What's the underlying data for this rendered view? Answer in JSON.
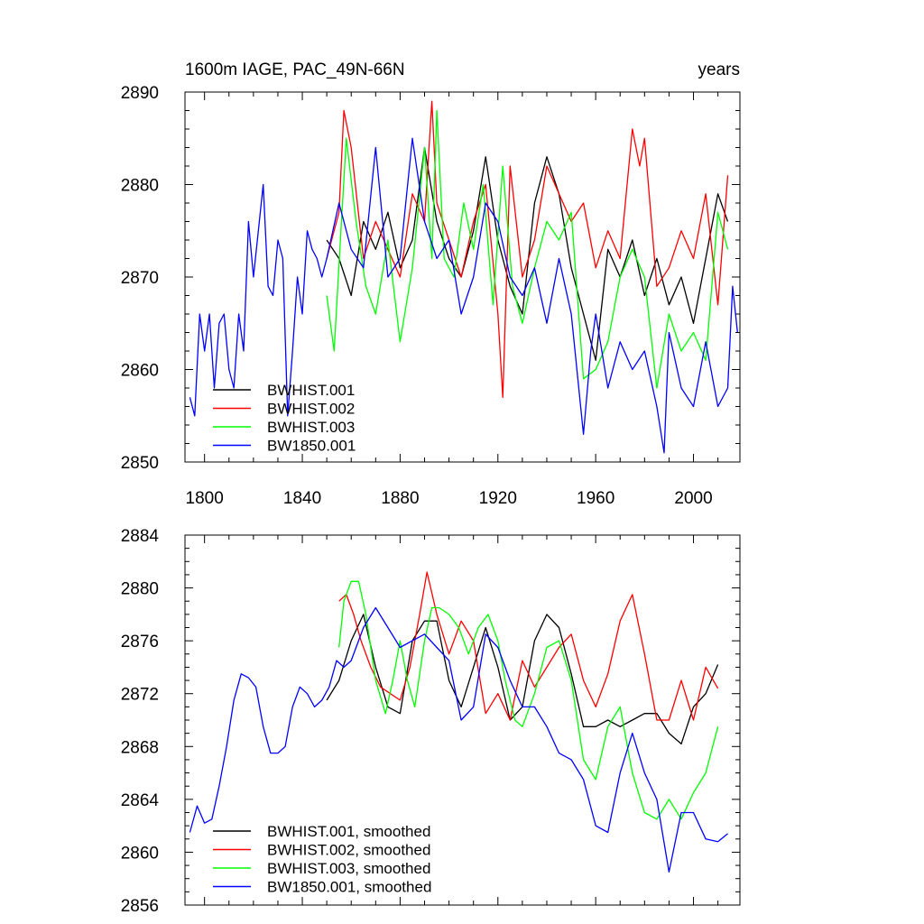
{
  "chart_data": [
    {
      "type": "line",
      "title_left": "1600m IAGE, PAC_49N-66N",
      "title_right": "years",
      "xlim": [
        1792,
        2019
      ],
      "ylim": [
        2850,
        2890
      ],
      "x_ticks": [
        1800,
        1840,
        1880,
        1920,
        1960,
        2000
      ],
      "y_ticks": [
        2850,
        2860,
        2870,
        2880,
        2890
      ],
      "grid": false,
      "legend_position": "bottom-left",
      "series": [
        {
          "name": "BWHIST.001",
          "color": "#000000",
          "x": [
            1850,
            1855,
            1860,
            1865,
            1870,
            1875,
            1880,
            1885,
            1890,
            1895,
            1900,
            1905,
            1910,
            1915,
            1920,
            1925,
            1930,
            1935,
            1940,
            1945,
            1950,
            1955,
            1960,
            1965,
            1970,
            1975,
            1980,
            1985,
            1990,
            1995,
            2000,
            2005,
            2010,
            2014
          ],
          "y": [
            2874,
            2872,
            2868,
            2876,
            2873,
            2877,
            2871,
            2874,
            2884,
            2876,
            2872,
            2870,
            2875,
            2883,
            2874,
            2869,
            2866,
            2878,
            2883,
            2879,
            2871,
            2866,
            2861,
            2873,
            2870,
            2874,
            2868,
            2872,
            2867,
            2870,
            2865,
            2872,
            2879,
            2876
          ]
        },
        {
          "name": "BWHIST.002",
          "color": "#ff0000",
          "x": [
            1850,
            1855,
            1857,
            1860,
            1865,
            1870,
            1875,
            1880,
            1885,
            1890,
            1893,
            1895,
            1900,
            1905,
            1910,
            1915,
            1920,
            1922,
            1925,
            1930,
            1935,
            1940,
            1945,
            1950,
            1955,
            1960,
            1965,
            1970,
            1975,
            1978,
            1980,
            1985,
            1990,
            1995,
            2000,
            2005,
            2010,
            2014
          ],
          "y": [
            2872,
            2877,
            2888,
            2884,
            2872,
            2876,
            2873,
            2870,
            2879,
            2876,
            2889,
            2878,
            2874,
            2870,
            2876,
            2880,
            2866,
            2857,
            2882,
            2870,
            2874,
            2882,
            2879,
            2876,
            2878,
            2871,
            2875,
            2872,
            2886,
            2882,
            2885,
            2869,
            2871,
            2875,
            2872,
            2879,
            2867,
            2881
          ]
        },
        {
          "name": "BWHIST.003",
          "color": "#00ff00",
          "x": [
            1850,
            1853,
            1856,
            1858,
            1862,
            1866,
            1870,
            1875,
            1880,
            1885,
            1890,
            1893,
            1895,
            1898,
            1902,
            1906,
            1910,
            1914,
            1918,
            1922,
            1926,
            1930,
            1935,
            1940,
            1945,
            1950,
            1955,
            1960,
            1965,
            1970,
            1975,
            1980,
            1985,
            1990,
            1995,
            2000,
            2005,
            2010,
            2014
          ],
          "y": [
            2868,
            2862,
            2876,
            2885,
            2876,
            2869,
            2866,
            2874,
            2863,
            2871,
            2884,
            2872,
            2888,
            2872,
            2870,
            2878,
            2873,
            2880,
            2867,
            2882,
            2869,
            2865,
            2871,
            2876,
            2874,
            2877,
            2859,
            2860,
            2863,
            2870,
            2873,
            2870,
            2858,
            2866,
            2862,
            2864,
            2861,
            2877,
            2873
          ]
        },
        {
          "name": "BW1850.001",
          "color": "#0000ff",
          "x": [
            1794,
            1796,
            1798,
            1800,
            1802,
            1804,
            1806,
            1808,
            1810,
            1812,
            1814,
            1816,
            1818,
            1820,
            1822,
            1824,
            1826,
            1828,
            1830,
            1832,
            1834,
            1836,
            1838,
            1840,
            1842,
            1844,
            1846,
            1848,
            1850,
            1855,
            1860,
            1865,
            1870,
            1875,
            1880,
            1885,
            1890,
            1895,
            1900,
            1905,
            1910,
            1915,
            1920,
            1925,
            1930,
            1935,
            1940,
            1945,
            1950,
            1955,
            1958,
            1960,
            1965,
            1970,
            1975,
            1980,
            1985,
            1988,
            1990,
            1995,
            2000,
            2005,
            2010,
            2014,
            2016,
            2018
          ],
          "y": [
            2857,
            2855,
            2866,
            2862,
            2866,
            2858,
            2865,
            2866,
            2860,
            2858,
            2866,
            2862,
            2876,
            2870,
            2875,
            2880,
            2869,
            2868,
            2874,
            2872,
            2855,
            2862,
            2870,
            2866,
            2875,
            2873,
            2872,
            2870,
            2872,
            2878,
            2873,
            2871,
            2884,
            2870,
            2872,
            2885,
            2876,
            2872,
            2874,
            2866,
            2870,
            2878,
            2876,
            2870,
            2868,
            2871,
            2865,
            2872,
            2866,
            2853,
            2862,
            2866,
            2858,
            2863,
            2860,
            2862,
            2856,
            2851,
            2864,
            2858,
            2856,
            2863,
            2856,
            2858,
            2869,
            2864
          ]
        }
      ]
    },
    {
      "type": "line",
      "xlim": [
        1792,
        2019
      ],
      "ylim": [
        2856,
        2884
      ],
      "y_ticks": [
        2856,
        2860,
        2864,
        2868,
        2872,
        2876,
        2880,
        2884
      ],
      "x_ticks": [
        1800,
        1840,
        1880,
        1920,
        1960,
        2000
      ],
      "grid": false,
      "legend_position": "bottom-left",
      "series": [
        {
          "name": "BWHIST.001, smoothed",
          "color": "#000000",
          "x": [
            1850,
            1855,
            1860,
            1865,
            1870,
            1875,
            1880,
            1885,
            1890,
            1895,
            1900,
            1905,
            1910,
            1915,
            1920,
            1925,
            1930,
            1935,
            1940,
            1945,
            1950,
            1955,
            1960,
            1965,
            1970,
            1975,
            1980,
            1985,
            1990,
            1995,
            2000,
            2005,
            2010
          ],
          "y": [
            2871.5,
            2873,
            2876,
            2878,
            2874,
            2871,
            2870.5,
            2876,
            2877.5,
            2877.5,
            2873,
            2871,
            2874,
            2877,
            2874,
            2870,
            2871,
            2876,
            2878,
            2877,
            2873.5,
            2869.5,
            2869.5,
            2870,
            2869.5,
            2870,
            2870.5,
            2870.5,
            2869,
            2868.2,
            2871,
            2872,
            2874.2
          ]
        },
        {
          "name": "BWHIST.002, smoothed",
          "color": "#ff0000",
          "x": [
            1855,
            1858,
            1861,
            1864,
            1868,
            1872,
            1876,
            1880,
            1884,
            1888,
            1891,
            1895,
            1900,
            1905,
            1910,
            1915,
            1920,
            1925,
            1930,
            1935,
            1940,
            1945,
            1950,
            1955,
            1960,
            1965,
            1970,
            1975,
            1980,
            1985,
            1990,
            1995,
            2000,
            2005,
            2010
          ],
          "y": [
            2879,
            2879.5,
            2878,
            2876,
            2874,
            2872.5,
            2872,
            2871.5,
            2874,
            2878,
            2881.2,
            2878,
            2875,
            2877.5,
            2876,
            2870.5,
            2872,
            2870,
            2874.5,
            2872.5,
            2874,
            2875.5,
            2876.5,
            2873,
            2871,
            2873.5,
            2877.5,
            2879.5,
            2875,
            2870,
            2870,
            2873,
            2870,
            2874,
            2872.4
          ]
        },
        {
          "name": "BWHIST.003, smoothed",
          "color": "#00ff00",
          "x": [
            1855,
            1857,
            1860,
            1863,
            1866,
            1870,
            1874,
            1877,
            1880,
            1883,
            1886,
            1890,
            1893,
            1896,
            1900,
            1904,
            1908,
            1912,
            1916,
            1920,
            1923,
            1927,
            1930,
            1935,
            1940,
            1945,
            1950,
            1955,
            1960,
            1965,
            1970,
            1975,
            1980,
            1985,
            1990,
            1995,
            2000,
            2005,
            2010
          ],
          "y": [
            2875.5,
            2879,
            2880.5,
            2880.5,
            2878,
            2873,
            2870.5,
            2873,
            2876,
            2873,
            2871,
            2876,
            2878.5,
            2878.5,
            2878,
            2877,
            2875,
            2877,
            2878,
            2876,
            2873,
            2870,
            2869.5,
            2872,
            2875.5,
            2876,
            2873,
            2867,
            2865.5,
            2869.5,
            2871,
            2866,
            2863,
            2862.5,
            2864,
            2862.5,
            2864.5,
            2866,
            2869.5
          ]
        },
        {
          "name": "BW1850.001, smoothed",
          "color": "#0000ff",
          "x": [
            1794,
            1797,
            1800,
            1803,
            1806,
            1809,
            1812,
            1815,
            1818,
            1821,
            1824,
            1827,
            1830,
            1833,
            1836,
            1839,
            1842,
            1845,
            1848,
            1851,
            1854,
            1857,
            1860,
            1865,
            1870,
            1875,
            1880,
            1885,
            1890,
            1895,
            1900,
            1905,
            1910,
            1915,
            1920,
            1925,
            1930,
            1935,
            1940,
            1945,
            1950,
            1955,
            1960,
            1965,
            1970,
            1975,
            1980,
            1985,
            1990,
            1995,
            2000,
            2005,
            2010,
            2014
          ],
          "y": [
            2861.5,
            2863.5,
            2862.2,
            2862.5,
            2865,
            2868,
            2871.5,
            2873.5,
            2873.2,
            2872.5,
            2869.5,
            2867.5,
            2867.5,
            2868,
            2871,
            2872.5,
            2872,
            2871,
            2871.5,
            2872.5,
            2874.5,
            2874,
            2874.5,
            2877,
            2878.5,
            2877,
            2875.5,
            2876,
            2876.5,
            2875.5,
            2874.5,
            2870,
            2871,
            2876.5,
            2875.5,
            2873,
            2871,
            2871,
            2869.5,
            2867.5,
            2867,
            2865.5,
            2862,
            2861.5,
            2866,
            2869,
            2866,
            2864,
            2858.5,
            2863,
            2863,
            2861,
            2860.8,
            2861.4
          ]
        }
      ]
    }
  ]
}
